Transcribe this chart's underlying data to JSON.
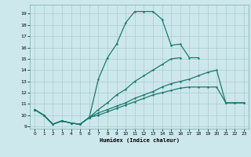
{
  "xlabel": "Humidex (Indice chaleur)",
  "bg_color": "#cce8ec",
  "grid_color": "#aacccc",
  "line_color": "#1a7a6e",
  "xlim": [
    -0.5,
    23.5
  ],
  "ylim": [
    8.8,
    19.8
  ],
  "xticks": [
    0,
    1,
    2,
    3,
    4,
    5,
    6,
    7,
    8,
    9,
    10,
    11,
    12,
    13,
    14,
    15,
    16,
    17,
    18,
    19,
    20,
    21,
    22,
    23
  ],
  "yticks": [
    9,
    10,
    11,
    12,
    13,
    14,
    15,
    16,
    17,
    18,
    19
  ],
  "series": {
    "peaked": {
      "x": [
        0,
        1,
        2,
        3,
        4,
        5,
        6,
        7,
        8,
        9,
        10,
        11,
        12,
        13,
        14,
        15,
        16,
        17,
        18
      ],
      "y": [
        10.5,
        10.0,
        9.2,
        9.5,
        9.3,
        9.2,
        9.8,
        13.2,
        15.1,
        16.3,
        18.2,
        19.2,
        19.2,
        19.2,
        18.5,
        16.2,
        16.3,
        15.1,
        15.1
      ]
    },
    "middle": {
      "x": [
        0,
        1,
        2,
        3,
        4,
        5,
        6,
        7,
        8,
        9,
        10,
        11,
        12,
        13,
        14,
        15,
        16
      ],
      "y": [
        10.5,
        10.0,
        9.2,
        9.5,
        9.3,
        9.2,
        9.8,
        10.5,
        11.1,
        11.8,
        12.3,
        13.0,
        13.5,
        14.0,
        14.5,
        15.0,
        15.1
      ]
    },
    "lower_long": {
      "x": [
        0,
        1,
        2,
        3,
        4,
        5,
        6,
        7,
        8,
        9,
        10,
        11,
        12,
        13,
        14,
        15,
        16,
        17,
        18,
        19,
        20,
        21,
        22,
        23
      ],
      "y": [
        10.5,
        10.0,
        9.2,
        9.5,
        9.3,
        9.2,
        9.8,
        10.2,
        10.5,
        10.8,
        11.1,
        11.5,
        11.8,
        12.1,
        12.5,
        12.8,
        13.0,
        13.2,
        13.5,
        13.8,
        14.0,
        11.1,
        11.1,
        11.1
      ]
    },
    "lowest": {
      "x": [
        0,
        1,
        2,
        3,
        4,
        5,
        6,
        7,
        8,
        9,
        10,
        11,
        12,
        13,
        14,
        15,
        16,
        17,
        18,
        19,
        20,
        21,
        22,
        23
      ],
      "y": [
        10.5,
        10.0,
        9.2,
        9.5,
        9.3,
        9.2,
        9.8,
        10.0,
        10.3,
        10.6,
        10.9,
        11.2,
        11.5,
        11.8,
        12.0,
        12.2,
        12.4,
        12.5,
        12.5,
        12.5,
        12.5,
        11.1,
        11.1,
        11.1
      ]
    }
  }
}
